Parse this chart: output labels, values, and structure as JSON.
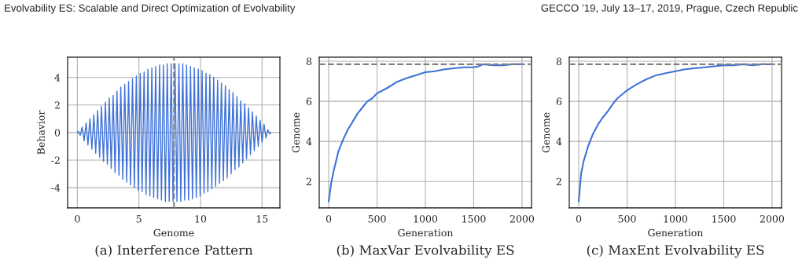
{
  "chart_data": [
    {
      "type": "line",
      "title": "(a) Interference Pattern",
      "xlabel": "Genome",
      "ylabel": "Behavior",
      "annotations": [
        "Evolvability ES: Scalable and Direct Optimization of Evolvability"
      ],
      "x": [
        0,
        0.08,
        0.24,
        0.39,
        0.55,
        0.71,
        0.86,
        1.02,
        1.18,
        1.34,
        1.49,
        1.65,
        1.81,
        1.96,
        2.12,
        2.28,
        2.44,
        2.59,
        2.75,
        2.91,
        3.06,
        3.22,
        3.38,
        3.53,
        3.69,
        3.85,
        4.01,
        4.16,
        4.32,
        4.48,
        4.63,
        4.79,
        4.95,
        5.11,
        5.26,
        5.42,
        5.58,
        5.73,
        5.89,
        6.05,
        6.2,
        6.36,
        6.52,
        6.68,
        6.83,
        6.99,
        7.15,
        7.3,
        7.46,
        7.62,
        7.77,
        7.93,
        8.09,
        8.25,
        8.4,
        8.56,
        8.72,
        8.87,
        9.03,
        9.19,
        9.35,
        9.5,
        9.66,
        9.82,
        9.97,
        10.13,
        10.29,
        10.45,
        10.6,
        10.76,
        10.92,
        11.07,
        11.23,
        11.39,
        11.54,
        11.7,
        11.86,
        12.02,
        12.17,
        12.33,
        12.49,
        12.64,
        12.8,
        12.96,
        13.12,
        13.27,
        13.43,
        13.59,
        13.74,
        13.9,
        14.06,
        14.22,
        14.37,
        14.53,
        14.69,
        14.84,
        15.0,
        15.16,
        15.32,
        15.47,
        15.63,
        15.71
      ],
      "series": [
        {
          "color": "#3f72d8",
          "values": [
            0,
            0.1,
            -0.2,
            0.4,
            -0.6,
            0.7,
            -0.9,
            1.0,
            -1.2,
            1.3,
            -1.5,
            1.6,
            -1.8,
            1.9,
            -2.1,
            2.2,
            -2.3,
            2.5,
            -2.6,
            2.7,
            -2.9,
            3.0,
            -3.1,
            3.3,
            -3.4,
            3.5,
            -3.6,
            3.7,
            -3.8,
            3.9,
            -4.0,
            4.1,
            -4.2,
            4.3,
            -4.3,
            4.4,
            -4.5,
            4.6,
            -4.6,
            4.7,
            -4.7,
            4.8,
            -4.8,
            4.9,
            -4.9,
            4.9,
            -5.0,
            5.0,
            -5.0,
            5.0,
            -5.0,
            5.0,
            -5.0,
            5.0,
            -5.0,
            5.0,
            -4.9,
            4.9,
            -4.9,
            4.8,
            -4.8,
            4.7,
            -4.7,
            4.6,
            -4.6,
            4.5,
            -4.4,
            4.3,
            -4.3,
            4.2,
            -4.1,
            4.0,
            -3.9,
            3.8,
            -3.7,
            3.6,
            -3.5,
            3.4,
            -3.3,
            3.1,
            -3.0,
            2.9,
            -2.7,
            2.6,
            -2.5,
            2.3,
            -2.2,
            2.1,
            -1.9,
            1.8,
            -1.6,
            1.5,
            -1.3,
            1.2,
            -1.0,
            0.9,
            -0.7,
            0.6,
            -0.4,
            0.2,
            -0.1,
            0
          ]
        }
      ],
      "xlim": [
        -0.79,
        16.45
      ],
      "ylim": [
        -5.47,
        5.47
      ],
      "xticks": [
        0,
        5,
        10,
        15
      ],
      "yticks": [
        -4,
        -2,
        0,
        2,
        4
      ],
      "ref_lines": [
        {
          "axis": "x",
          "value": 7.85,
          "color": "#808080",
          "line_style": "dashed"
        }
      ],
      "grid": true
    },
    {
      "type": "line",
      "title": "(b) MaxVar Evolvability ES",
      "xlabel": "Generation",
      "ylabel": "Genome",
      "x": [
        0,
        25,
        50,
        100,
        150,
        200,
        250,
        300,
        350,
        400,
        450,
        500,
        600,
        700,
        800,
        900,
        1000,
        1100,
        1200,
        1300,
        1400,
        1500,
        1550,
        1600,
        1700,
        1800,
        1900,
        2000
      ],
      "series": [
        {
          "color": "#3f72d8",
          "values": [
            1.0,
            1.9,
            2.5,
            3.5,
            4.1,
            4.6,
            5.0,
            5.4,
            5.7,
            6.0,
            6.15,
            6.4,
            6.65,
            6.95,
            7.15,
            7.3,
            7.45,
            7.5,
            7.6,
            7.65,
            7.7,
            7.7,
            7.75,
            7.85,
            7.8,
            7.8,
            7.85,
            7.85
          ]
        }
      ],
      "xlim": [
        -98,
        2098
      ],
      "ylim": [
        0.68,
        8.2
      ],
      "xticks": [
        0,
        500,
        1000,
        1500,
        2000
      ],
      "yticks": [
        2,
        4,
        6,
        8
      ],
      "ref_lines": [
        {
          "axis": "y",
          "value": 7.85,
          "color": "#808080",
          "line_style": "dashed"
        }
      ],
      "grid": true
    },
    {
      "type": "line",
      "title": "(c) MaxEnt Evolvability ES",
      "xlabel": "Generation",
      "ylabel": "Genome",
      "annotations": [
        "GECCO ’19, July 13–17, 2019, Prague, Czech Republic"
      ],
      "x": [
        0,
        25,
        50,
        100,
        150,
        200,
        250,
        300,
        350,
        400,
        500,
        600,
        700,
        800,
        900,
        1000,
        1100,
        1200,
        1300,
        1400,
        1500,
        1600,
        1700,
        1800,
        1900,
        2000
      ],
      "series": [
        {
          "color": "#3f72d8",
          "values": [
            1.0,
            2.4,
            3.0,
            3.8,
            4.4,
            4.85,
            5.2,
            5.5,
            5.85,
            6.15,
            6.55,
            6.85,
            7.1,
            7.3,
            7.4,
            7.5,
            7.6,
            7.65,
            7.7,
            7.75,
            7.8,
            7.8,
            7.85,
            7.8,
            7.85,
            7.85
          ]
        }
      ],
      "xlim": [
        -98,
        2098
      ],
      "ylim": [
        0.68,
        8.2
      ],
      "xticks": [
        0,
        500,
        1000,
        1500,
        2000
      ],
      "yticks": [
        2,
        4,
        6,
        8
      ],
      "ref_lines": [
        {
          "axis": "y",
          "value": 7.85,
          "color": "#808080",
          "line_style": "dashed"
        }
      ],
      "grid": true
    }
  ]
}
